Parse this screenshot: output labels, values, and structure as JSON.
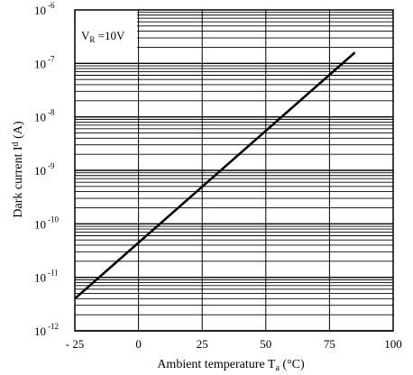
{
  "chart_data": {
    "type": "line",
    "xlabel": "Ambient temperature T",
    "xlabel_sub": "a",
    "xlabel_unit": " (°C)",
    "ylabel": "Dark current I",
    "ylabel_sub": "d",
    "ylabel_unit": " (A)",
    "xlim": [
      -25,
      100
    ],
    "ylim": [
      1e-12,
      1e-06
    ],
    "y_scale": "log",
    "grid": true,
    "x_ticks": [
      {
        "value": -25,
        "label": "- 25"
      },
      {
        "value": 0,
        "label": "0"
      },
      {
        "value": 25,
        "label": "25"
      },
      {
        "value": 50,
        "label": "50"
      },
      {
        "value": 75,
        "label": "75"
      },
      {
        "value": 100,
        "label": "100"
      }
    ],
    "y_ticks": [
      {
        "value": 1e-12,
        "base": "10",
        "exp": "-12"
      },
      {
        "value": 1e-11,
        "base": "10",
        "exp": "-11"
      },
      {
        "value": 1e-10,
        "base": "10",
        "exp": "-10"
      },
      {
        "value": 1e-09,
        "base": "10",
        "exp": "-9"
      },
      {
        "value": 1e-08,
        "base": "10",
        "exp": "-8"
      },
      {
        "value": 1e-07,
        "base": "10",
        "exp": "-7"
      },
      {
        "value": 1e-06,
        "base": "10",
        "exp": "-6"
      }
    ],
    "annotation": {
      "main": "V",
      "sub": "R",
      "rest": " =10V"
    },
    "series": [
      {
        "x": [
          -25,
          85
        ],
        "y": [
          4e-12,
          1.6e-07
        ]
      }
    ]
  }
}
